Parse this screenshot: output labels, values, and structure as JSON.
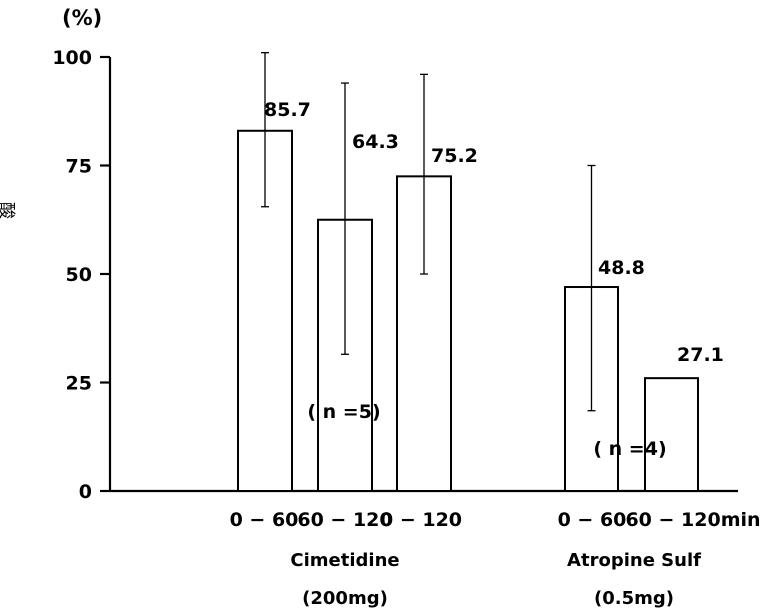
{
  "chart_data": {
    "type": "bar",
    "y_unit": "(%)",
    "ylabel": "酸分泌阻害率%",
    "ylim": [
      0,
      100
    ],
    "yticks": [
      0,
      25,
      50,
      75,
      100
    ],
    "ytick_labels": [
      "0",
      "25",
      "50",
      "75",
      "100"
    ],
    "x_unit_suffix": "min",
    "groups": [
      {
        "name": "Cimetidine",
        "dose": "(200mg)",
        "n_label": "( n =5)",
        "bars": [
          {
            "category": "0 − 60",
            "value": 85.7,
            "value_label": "85.7",
            "bar_height": 83,
            "err_low": 65.5,
            "err_high": 101
          },
          {
            "category": "60 − 120",
            "value": 64.3,
            "value_label": "64.3",
            "bar_height": 62.5,
            "err_low": 31.5,
            "err_high": 94
          },
          {
            "category": "0 − 120",
            "value": 75.2,
            "value_label": "75.2",
            "bar_height": 72.5,
            "err_low": 50,
            "err_high": 96
          }
        ]
      },
      {
        "name": "Atropine Sulf",
        "dose": "(0.5mg)",
        "n_label": "( n =4)",
        "bars": [
          {
            "category": "0 − 60",
            "value": 48.8,
            "value_label": "48.8",
            "bar_height": 47,
            "err_low": 18.5,
            "err_high": 75
          },
          {
            "category": "60 − 120",
            "value": 27.1,
            "value_label": "27.1",
            "bar_height": 26,
            "err_low": null,
            "err_high": null
          }
        ]
      }
    ]
  }
}
